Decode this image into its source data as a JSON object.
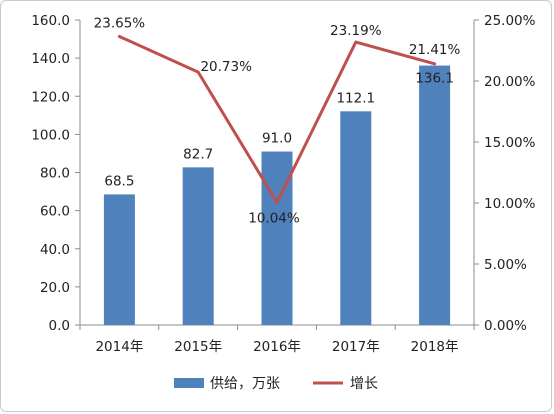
{
  "chart_data": {
    "type": "bar+line",
    "categories": [
      "2014年",
      "2015年",
      "2016年",
      "2017年",
      "2018年"
    ],
    "series": [
      {
        "name": "供给，万张",
        "type": "bar",
        "axis": "left",
        "color": "#4f81bd",
        "values": [
          68.5,
          82.7,
          91.0,
          112.1,
          136.1
        ],
        "labels": [
          "68.5",
          "82.7",
          "91.0",
          "112.1",
          "136.1"
        ]
      },
      {
        "name": "增长",
        "type": "line",
        "axis": "right",
        "color": "#c0504d",
        "values": [
          23.65,
          20.73,
          10.04,
          23.19,
          21.41
        ],
        "labels": [
          "23.65%",
          "20.73%",
          "10.04%",
          "23.19%",
          "21.41%"
        ]
      }
    ],
    "y_left": {
      "ylim": [
        0,
        160
      ],
      "ticks": [
        "0.0",
        "20.0",
        "40.0",
        "60.0",
        "80.0",
        "100.0",
        "120.0",
        "140.0",
        "160.0"
      ]
    },
    "y_right": {
      "ylim": [
        0,
        25
      ],
      "ticks": [
        "0.00%",
        "5.00%",
        "10.00%",
        "15.00%",
        "20.00%",
        "25.00%"
      ]
    },
    "grid": false,
    "legend": "bottom"
  }
}
